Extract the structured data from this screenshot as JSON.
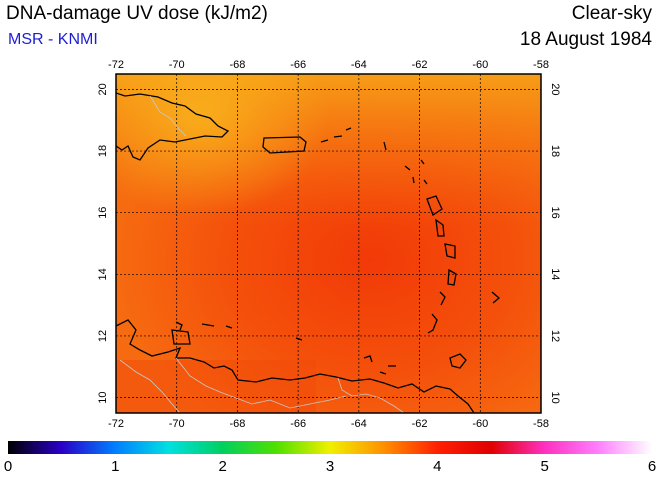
{
  "header": {
    "title": "DNA-damage UV dose (kJ/m2)",
    "subtitle": "MSR - KNMI",
    "condition": "Clear-sky",
    "date": "18 August 1984"
  },
  "map": {
    "lon_ticks": [
      "-72",
      "-70",
      "-68",
      "-66",
      "-64",
      "-62",
      "-60",
      "-58"
    ],
    "lat_ticks": [
      "10",
      "12",
      "14",
      "16",
      "18",
      "20"
    ],
    "lon_range": [
      -72,
      -58
    ],
    "lat_range": [
      9.5,
      20.5
    ],
    "grid": true,
    "coastline_color": "#000000",
    "border_color": "#c8c8c8"
  },
  "colorbar": {
    "labels": [
      "0",
      "1",
      "2",
      "3",
      "4",
      "5",
      "6"
    ],
    "range": [
      0,
      6
    ],
    "colors": [
      "#000000",
      "#2a00c8",
      "#0080ff",
      "#00e0e0",
      "#00d060",
      "#50e000",
      "#f0f000",
      "#ff9000",
      "#ff2000",
      "#e00000",
      "#ff30c0",
      "#ff80ff",
      "#ffffff"
    ]
  }
}
